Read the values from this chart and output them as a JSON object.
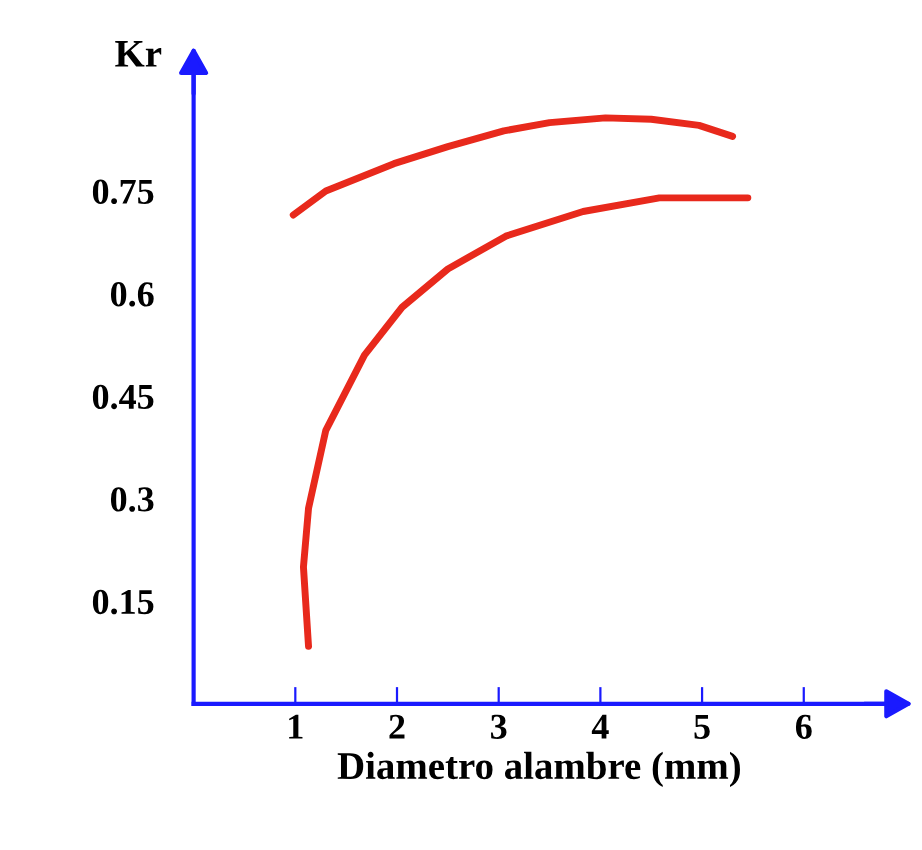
{
  "chart_data": {
    "type": "line",
    "xlabel": "Diametro alambre (mm)",
    "ylabel": "Kr",
    "xlim": [
      0,
      6.8
    ],
    "ylim": [
      0,
      0.92
    ],
    "xticks": [
      1,
      2,
      3,
      4,
      5,
      6
    ],
    "yticks": [
      0.15,
      0.3,
      0.45,
      0.6,
      0.75
    ],
    "grid": false,
    "marker": "none",
    "line_style": "solid",
    "series": [
      {
        "color": "#e8291c",
        "x": [
          0.98,
          1.3,
          1.97,
          2.5,
          3.05,
          3.5,
          4.05,
          4.5,
          4.97,
          5.3
        ],
        "values": [
          0.715,
          0.75,
          0.79,
          0.815,
          0.838,
          0.85,
          0.857,
          0.855,
          0.846,
          0.83
        ]
      },
      {
        "color": "#e8291c",
        "x": [
          1.13,
          1.08,
          1.13,
          1.3,
          1.68,
          2.05,
          2.5,
          3.07,
          3.83,
          4.58,
          5.3,
          5.45
        ],
        "values": [
          0.084,
          0.2,
          0.286,
          0.4,
          0.51,
          0.58,
          0.636,
          0.684,
          0.72,
          0.74,
          0.74,
          0.74
        ]
      }
    ]
  }
}
